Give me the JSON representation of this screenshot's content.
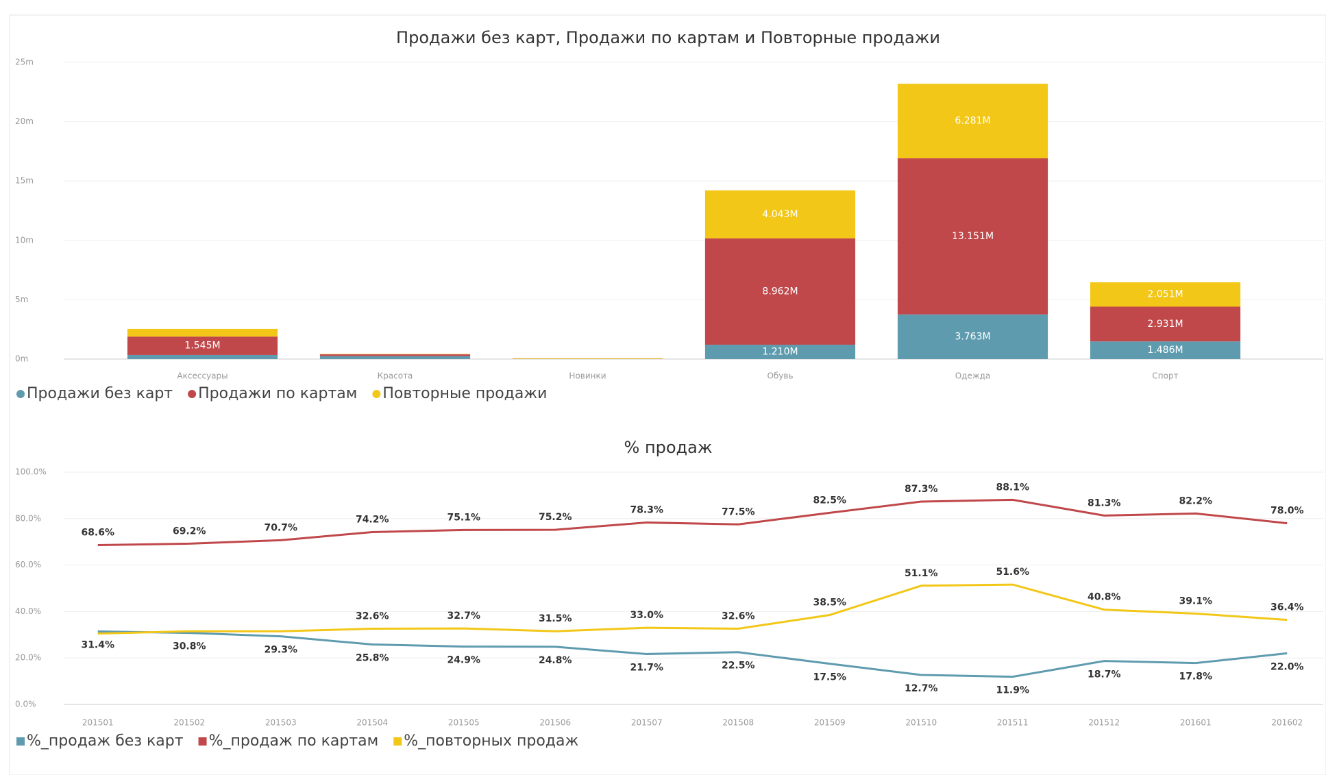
{
  "chart_data": [
    {
      "type": "bar",
      "stacked": true,
      "title": "Продажи без карт, Продажи по картам и Повторные продажи",
      "categories": [
        "Аксессуары",
        "Красота",
        "Новинки",
        "Обувь",
        "Одежда",
        "Спорт"
      ],
      "series": [
        {
          "name": "Продажи без карт",
          "color": "#5f9bae",
          "values": [
            0.35,
            0.25,
            0.01,
            1.21,
            3.763,
            1.486
          ],
          "value_labels": [
            null,
            null,
            null,
            "1.210M",
            "3.763M",
            "1.486M"
          ]
        },
        {
          "name": "Продажи по картам",
          "color": "#c0474a",
          "values": [
            1.545,
            0.15,
            0.01,
            8.962,
            13.151,
            2.931
          ],
          "value_labels": [
            "1.545M",
            null,
            null,
            "8.962M",
            "13.151M",
            "2.931M"
          ]
        },
        {
          "name": "Повторные продажи",
          "color": "#f2c717",
          "values": [
            0.65,
            0.03,
            0.05,
            4.043,
            6.281,
            2.051
          ],
          "value_labels": [
            null,
            null,
            null,
            "4.043M",
            "6.281M",
            "2.051M"
          ]
        }
      ],
      "ylim": [
        0,
        25
      ],
      "yticks": [
        {
          "value": 0,
          "label": "0m"
        },
        {
          "value": 5,
          "label": "5m"
        },
        {
          "value": 10,
          "label": "10m"
        },
        {
          "value": 15,
          "label": "15m"
        },
        {
          "value": 20,
          "label": "20m"
        },
        {
          "value": 25,
          "label": "25m"
        }
      ],
      "grid": true,
      "legend": "bottom-left"
    },
    {
      "type": "line",
      "title": "% продаж",
      "categories": [
        "201501",
        "201502",
        "201503",
        "201504",
        "201505",
        "201506",
        "201507",
        "201508",
        "201509",
        "201510",
        "201511",
        "201512",
        "201601",
        "201602"
      ],
      "series": [
        {
          "name": "%_продаж без карт",
          "color": "#5f9bae",
          "values": [
            31.4,
            30.8,
            29.3,
            25.8,
            24.9,
            24.8,
            21.7,
            22.5,
            17.5,
            12.7,
            11.9,
            18.7,
            17.8,
            22.0
          ],
          "value_labels": [
            "31.4%",
            "30.8%",
            "29.3%",
            "25.8%",
            "24.9%",
            "24.8%",
            "21.7%",
            "22.5%",
            "17.5%",
            "12.7%",
            "11.9%",
            "18.7%",
            "17.8%",
            "22.0%"
          ]
        },
        {
          "name": "%_продаж по картам",
          "color": "#c0474a",
          "values": [
            68.6,
            69.2,
            70.7,
            74.2,
            75.1,
            75.2,
            78.3,
            77.5,
            82.5,
            87.3,
            88.1,
            81.3,
            82.2,
            78.0
          ],
          "value_labels": [
            "68.6%",
            "69.2%",
            "70.7%",
            "74.2%",
            "75.1%",
            "75.2%",
            "78.3%",
            "77.5%",
            "82.5%",
            "87.3%",
            "88.1%",
            "81.3%",
            "82.2%",
            "78.0%"
          ]
        },
        {
          "name": "%_повторных продаж",
          "color": "#f2c717",
          "values": [
            30.5,
            31.5,
            31.5,
            32.6,
            32.7,
            31.5,
            33.0,
            32.6,
            38.5,
            51.1,
            51.6,
            40.8,
            39.1,
            36.4
          ],
          "value_labels": [
            null,
            null,
            null,
            "32.6%",
            "32.7%",
            "31.5%",
            "33.0%",
            "32.6%",
            "38.5%",
            "51.1%",
            "51.6%",
            "40.8%",
            "39.1%",
            "36.4%"
          ]
        }
      ],
      "ylim": [
        0,
        100
      ],
      "yticks": [
        {
          "value": 0,
          "label": "0.0%"
        },
        {
          "value": 20,
          "label": "20.0%"
        },
        {
          "value": 40,
          "label": "40.0%"
        },
        {
          "value": 60,
          "label": "60.0%"
        },
        {
          "value": 80,
          "label": "80.0%"
        },
        {
          "value": 100,
          "label": "100.0%"
        }
      ],
      "grid": true,
      "legend": "bottom-left"
    }
  ]
}
